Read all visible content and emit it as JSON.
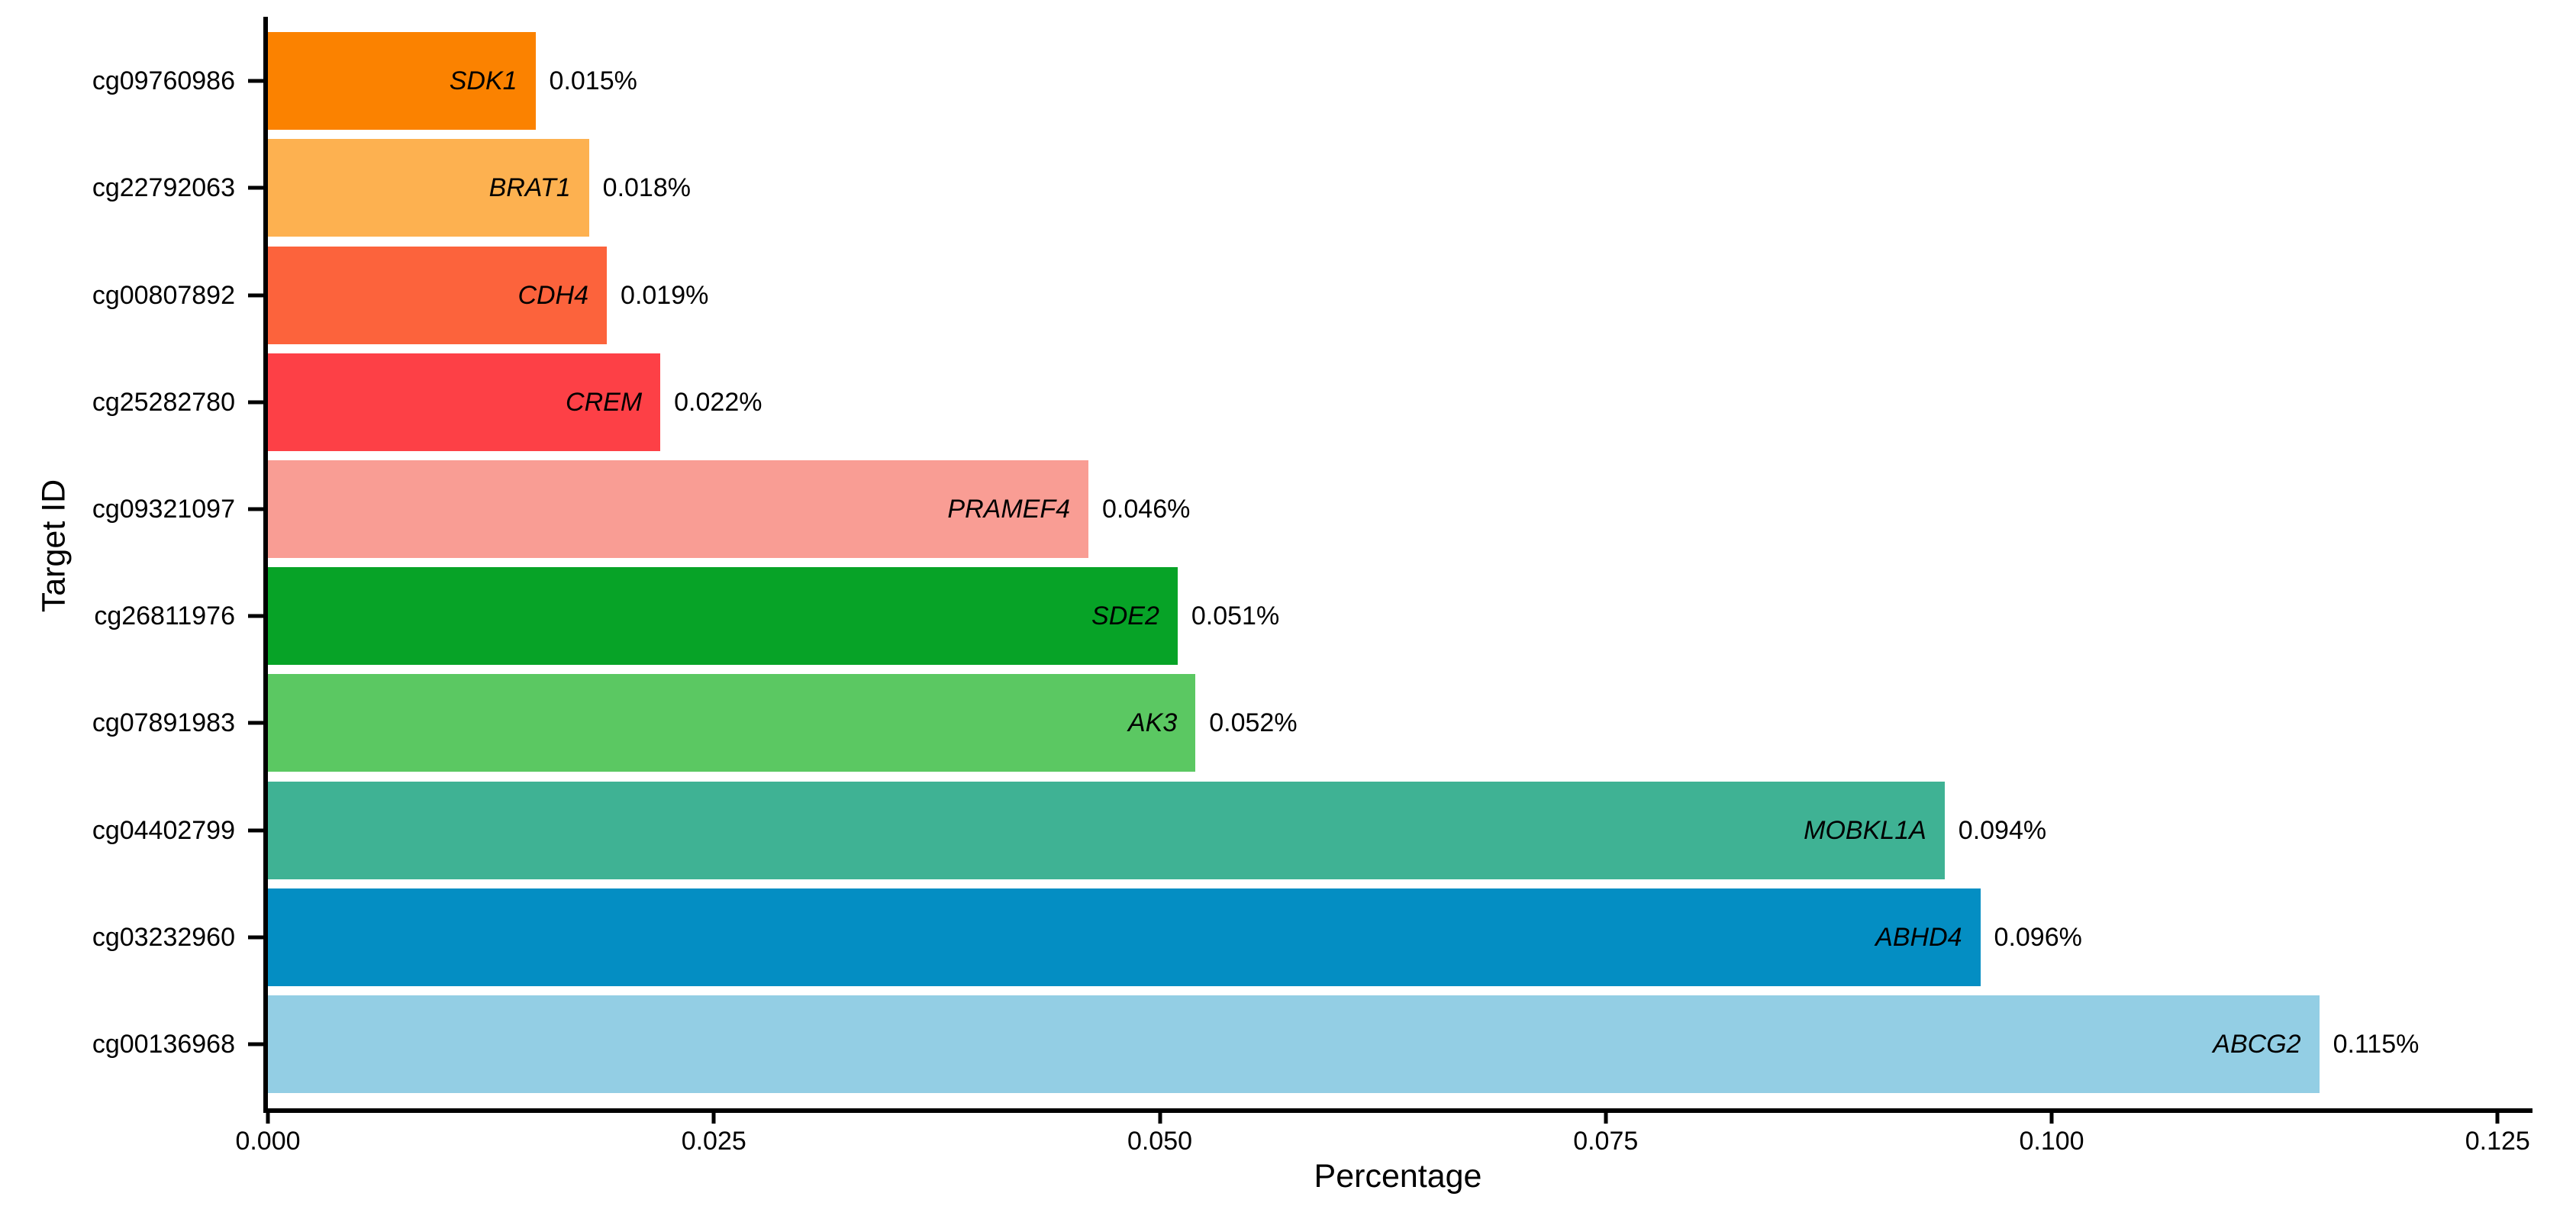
{
  "chart_data": {
    "type": "bar",
    "orientation": "horizontal",
    "title": "",
    "xlabel": "Percentage",
    "ylabel": "Target ID",
    "xlim": [
      0,
      0.1267
    ],
    "grid": false,
    "legend": false,
    "background_color": "#FFFFFF",
    "axis_color": "#000000",
    "text_color": "#000000",
    "x_ticks": [
      {
        "value": 0.0,
        "label": "0.000"
      },
      {
        "value": 0.025,
        "label": "0.025"
      },
      {
        "value": 0.05,
        "label": "0.050"
      },
      {
        "value": 0.075,
        "label": "0.075"
      },
      {
        "value": 0.1,
        "label": "0.100"
      },
      {
        "value": 0.125,
        "label": "0.125"
      }
    ],
    "categories": [
      "cg09760986",
      "cg22792063",
      "cg00807892",
      "cg25282780",
      "cg09321097",
      "cg26811976",
      "cg07891983",
      "cg04402799",
      "cg03232960",
      "cg00136968"
    ],
    "bars": [
      {
        "target_id": "cg09760986",
        "gene": "SDK1",
        "value": 0.015,
        "value_label": "0.015%",
        "color": "#FB8200"
      },
      {
        "target_id": "cg22792063",
        "gene": "BRAT1",
        "value": 0.018,
        "value_label": "0.018%",
        "color": "#FDB150"
      },
      {
        "target_id": "cg00807892",
        "gene": "CDH4",
        "value": 0.019,
        "value_label": "0.019%",
        "color": "#FC633C"
      },
      {
        "target_id": "cg25282780",
        "gene": "CREM",
        "value": 0.022,
        "value_label": "0.022%",
        "color": "#FD4046"
      },
      {
        "target_id": "cg09321097",
        "gene": "PRAMEF4",
        "value": 0.046,
        "value_label": "0.046%",
        "color": "#F99D94"
      },
      {
        "target_id": "cg26811976",
        "gene": "SDE2",
        "value": 0.051,
        "value_label": "0.051%",
        "color": "#07A327"
      },
      {
        "target_id": "cg07891983",
        "gene": "AK3",
        "value": 0.052,
        "value_label": "0.052%",
        "color": "#5BC862"
      },
      {
        "target_id": "cg04402799",
        "gene": "MOBKL1A",
        "value": 0.094,
        "value_label": "0.094%",
        "color": "#3FB294"
      },
      {
        "target_id": "cg03232960",
        "gene": "ABHD4",
        "value": 0.096,
        "value_label": "0.096%",
        "color": "#048EC3"
      },
      {
        "target_id": "cg00136968",
        "gene": "ABCG2",
        "value": 0.115,
        "value_label": "0.115%",
        "color": "#93CEE4"
      }
    ]
  }
}
